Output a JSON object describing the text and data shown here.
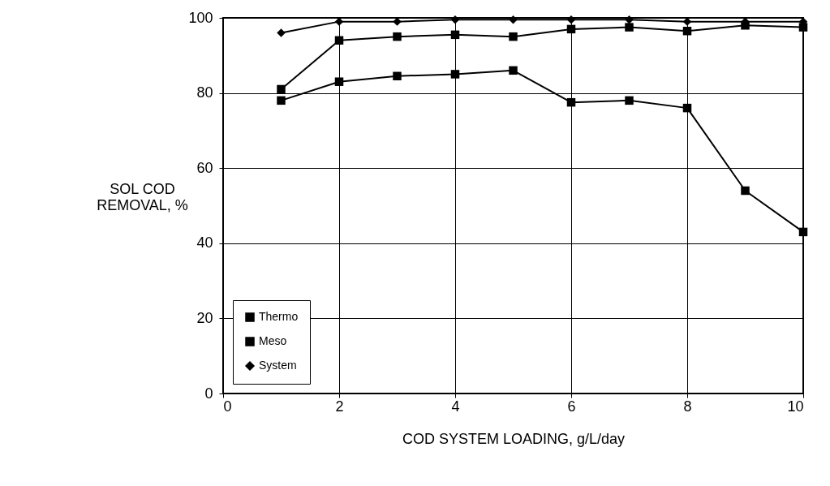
{
  "chart_data": {
    "type": "line",
    "xlabel": "COD SYSTEM LOADING, g/L/day",
    "ylabel": "SOL COD\nREMOVAL, %",
    "x": [
      1,
      2,
      3,
      4,
      5,
      6,
      7,
      8,
      9,
      10
    ],
    "series": [
      {
        "name": "Thermo",
        "color": "#000000",
        "marker": "square",
        "values": [
          78,
          83,
          84.5,
          85,
          86,
          77.5,
          78,
          76,
          54,
          43
        ]
      },
      {
        "name": "Meso",
        "color": "#000000",
        "marker": "square",
        "values": [
          81,
          94,
          95,
          95.5,
          95,
          97,
          97.5,
          96.5,
          98,
          97.5
        ]
      },
      {
        "name": "System",
        "color": "#000000",
        "marker": "diamond",
        "values": [
          96,
          99,
          99,
          99.5,
          99.5,
          99.5,
          99.5,
          99,
          99,
          99
        ]
      }
    ],
    "xlim": [
      0,
      10
    ],
    "xticks": [
      0,
      2,
      4,
      6,
      8,
      10
    ],
    "ylim": [
      0,
      100
    ],
    "yticks": [
      0,
      20,
      40,
      60,
      80,
      100
    ],
    "grid": true,
    "legend": "bottom left",
    "line_style": "solid"
  }
}
